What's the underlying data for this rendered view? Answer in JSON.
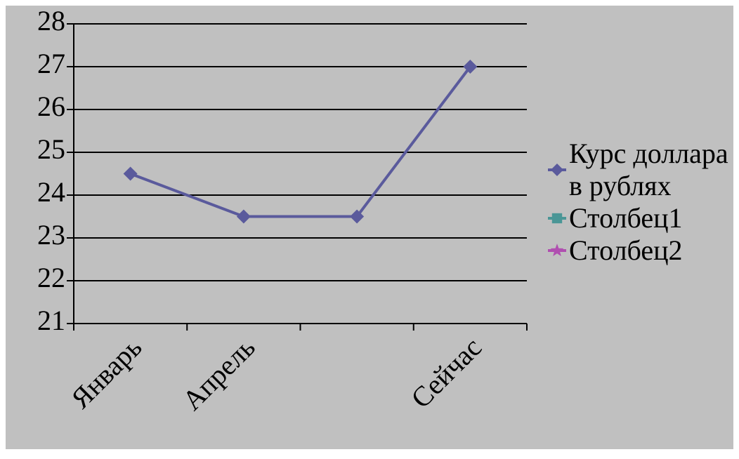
{
  "chart_data": {
    "type": "line",
    "categories": [
      "Январь",
      "Апрель",
      null,
      "Сейчас"
    ],
    "series": [
      {
        "name": "Курс доллара в рублях",
        "color": "#5a5a9c",
        "marker": "diamond",
        "values": [
          24.5,
          23.5,
          23.5,
          27
        ]
      },
      {
        "name": "Столбец1",
        "color": "#4a9696",
        "marker": "square",
        "values": [
          null,
          null,
          null,
          null
        ]
      },
      {
        "name": "Столбец2",
        "color": "#b04fb0",
        "marker": "star",
        "values": [
          null,
          null,
          null,
          null
        ]
      }
    ],
    "ylim": [
      21,
      28
    ],
    "yticks": [
      21,
      22,
      23,
      24,
      25,
      26,
      27,
      28
    ],
    "grid": true,
    "legend": "right"
  }
}
